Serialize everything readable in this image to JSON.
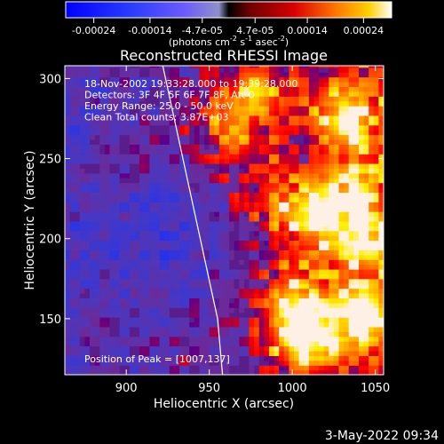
{
  "chart_data": {
    "type": "heatmap",
    "title": "Reconstructed RHESSI Image",
    "xlabel": "Heliocentric X (arcsec)",
    "ylabel": "Heliocentric Y (arcsec)",
    "xlim": [
      863,
      1055
    ],
    "ylim": [
      115,
      308
    ],
    "x_ticks": [
      900,
      950,
      1000,
      1050
    ],
    "y_ticks": [
      150,
      200,
      250,
      300
    ],
    "colorbar": {
      "ticks": [
        "-0.00024",
        "-0.00014",
        "-4.7e-05",
        "4.7e-05",
        "0.00014",
        "0.00024"
      ],
      "values": [
        -0.00024,
        -0.00014,
        -4.7e-05,
        4.7e-05,
        0.00014,
        0.00024
      ],
      "range": [
        -0.00029,
        0.00029
      ],
      "unit_main": "(photons cm",
      "unit_exp1": "-2",
      "unit_mid1": " s",
      "unit_exp2": "-1",
      "unit_mid2": " asec",
      "unit_exp3": "-2",
      "unit_close": ")"
    },
    "annotations": [
      "18-Nov-2002 19:33:28.000 to 19:39:28.000",
      "Detectors: 3F 4F 5F 6F 7F 8F, Att 0",
      "Energy Range: 25.0 - 50.0 keV",
      "Clean      Total counts: 3.87E+03"
    ],
    "peak_label": "Position of Peak = [1007,137]",
    "peak": [
      1007,
      137
    ],
    "limb_line": [
      [
        922,
        308
      ],
      [
        955,
        150
      ],
      [
        958,
        115
      ]
    ],
    "bright_sources": [
      {
        "x": 1007,
        "y": 137,
        "strength": 1.0
      },
      {
        "x": 1040,
        "y": 150,
        "strength": 0.8
      },
      {
        "x": 1010,
        "y": 210,
        "strength": 0.8
      },
      {
        "x": 975,
        "y": 290,
        "strength": 0.7
      },
      {
        "x": 1030,
        "y": 275,
        "strength": 0.75
      },
      {
        "x": 960,
        "y": 265,
        "strength": 0.5
      },
      {
        "x": 1035,
        "y": 230,
        "strength": 0.6
      },
      {
        "x": 985,
        "y": 225,
        "strength": 0.4
      },
      {
        "x": 895,
        "y": 250,
        "strength": 0.25
      },
      {
        "x": 880,
        "y": 140,
        "strength": 0.2
      },
      {
        "x": 1000,
        "y": 160,
        "strength": 0.7
      },
      {
        "x": 1045,
        "y": 195,
        "strength": 0.7
      }
    ],
    "faint_region": {
      "x": 930,
      "y": 195,
      "strength": -0.35
    }
  },
  "footer": {
    "timestamp": "3-May-2022 09:34"
  }
}
